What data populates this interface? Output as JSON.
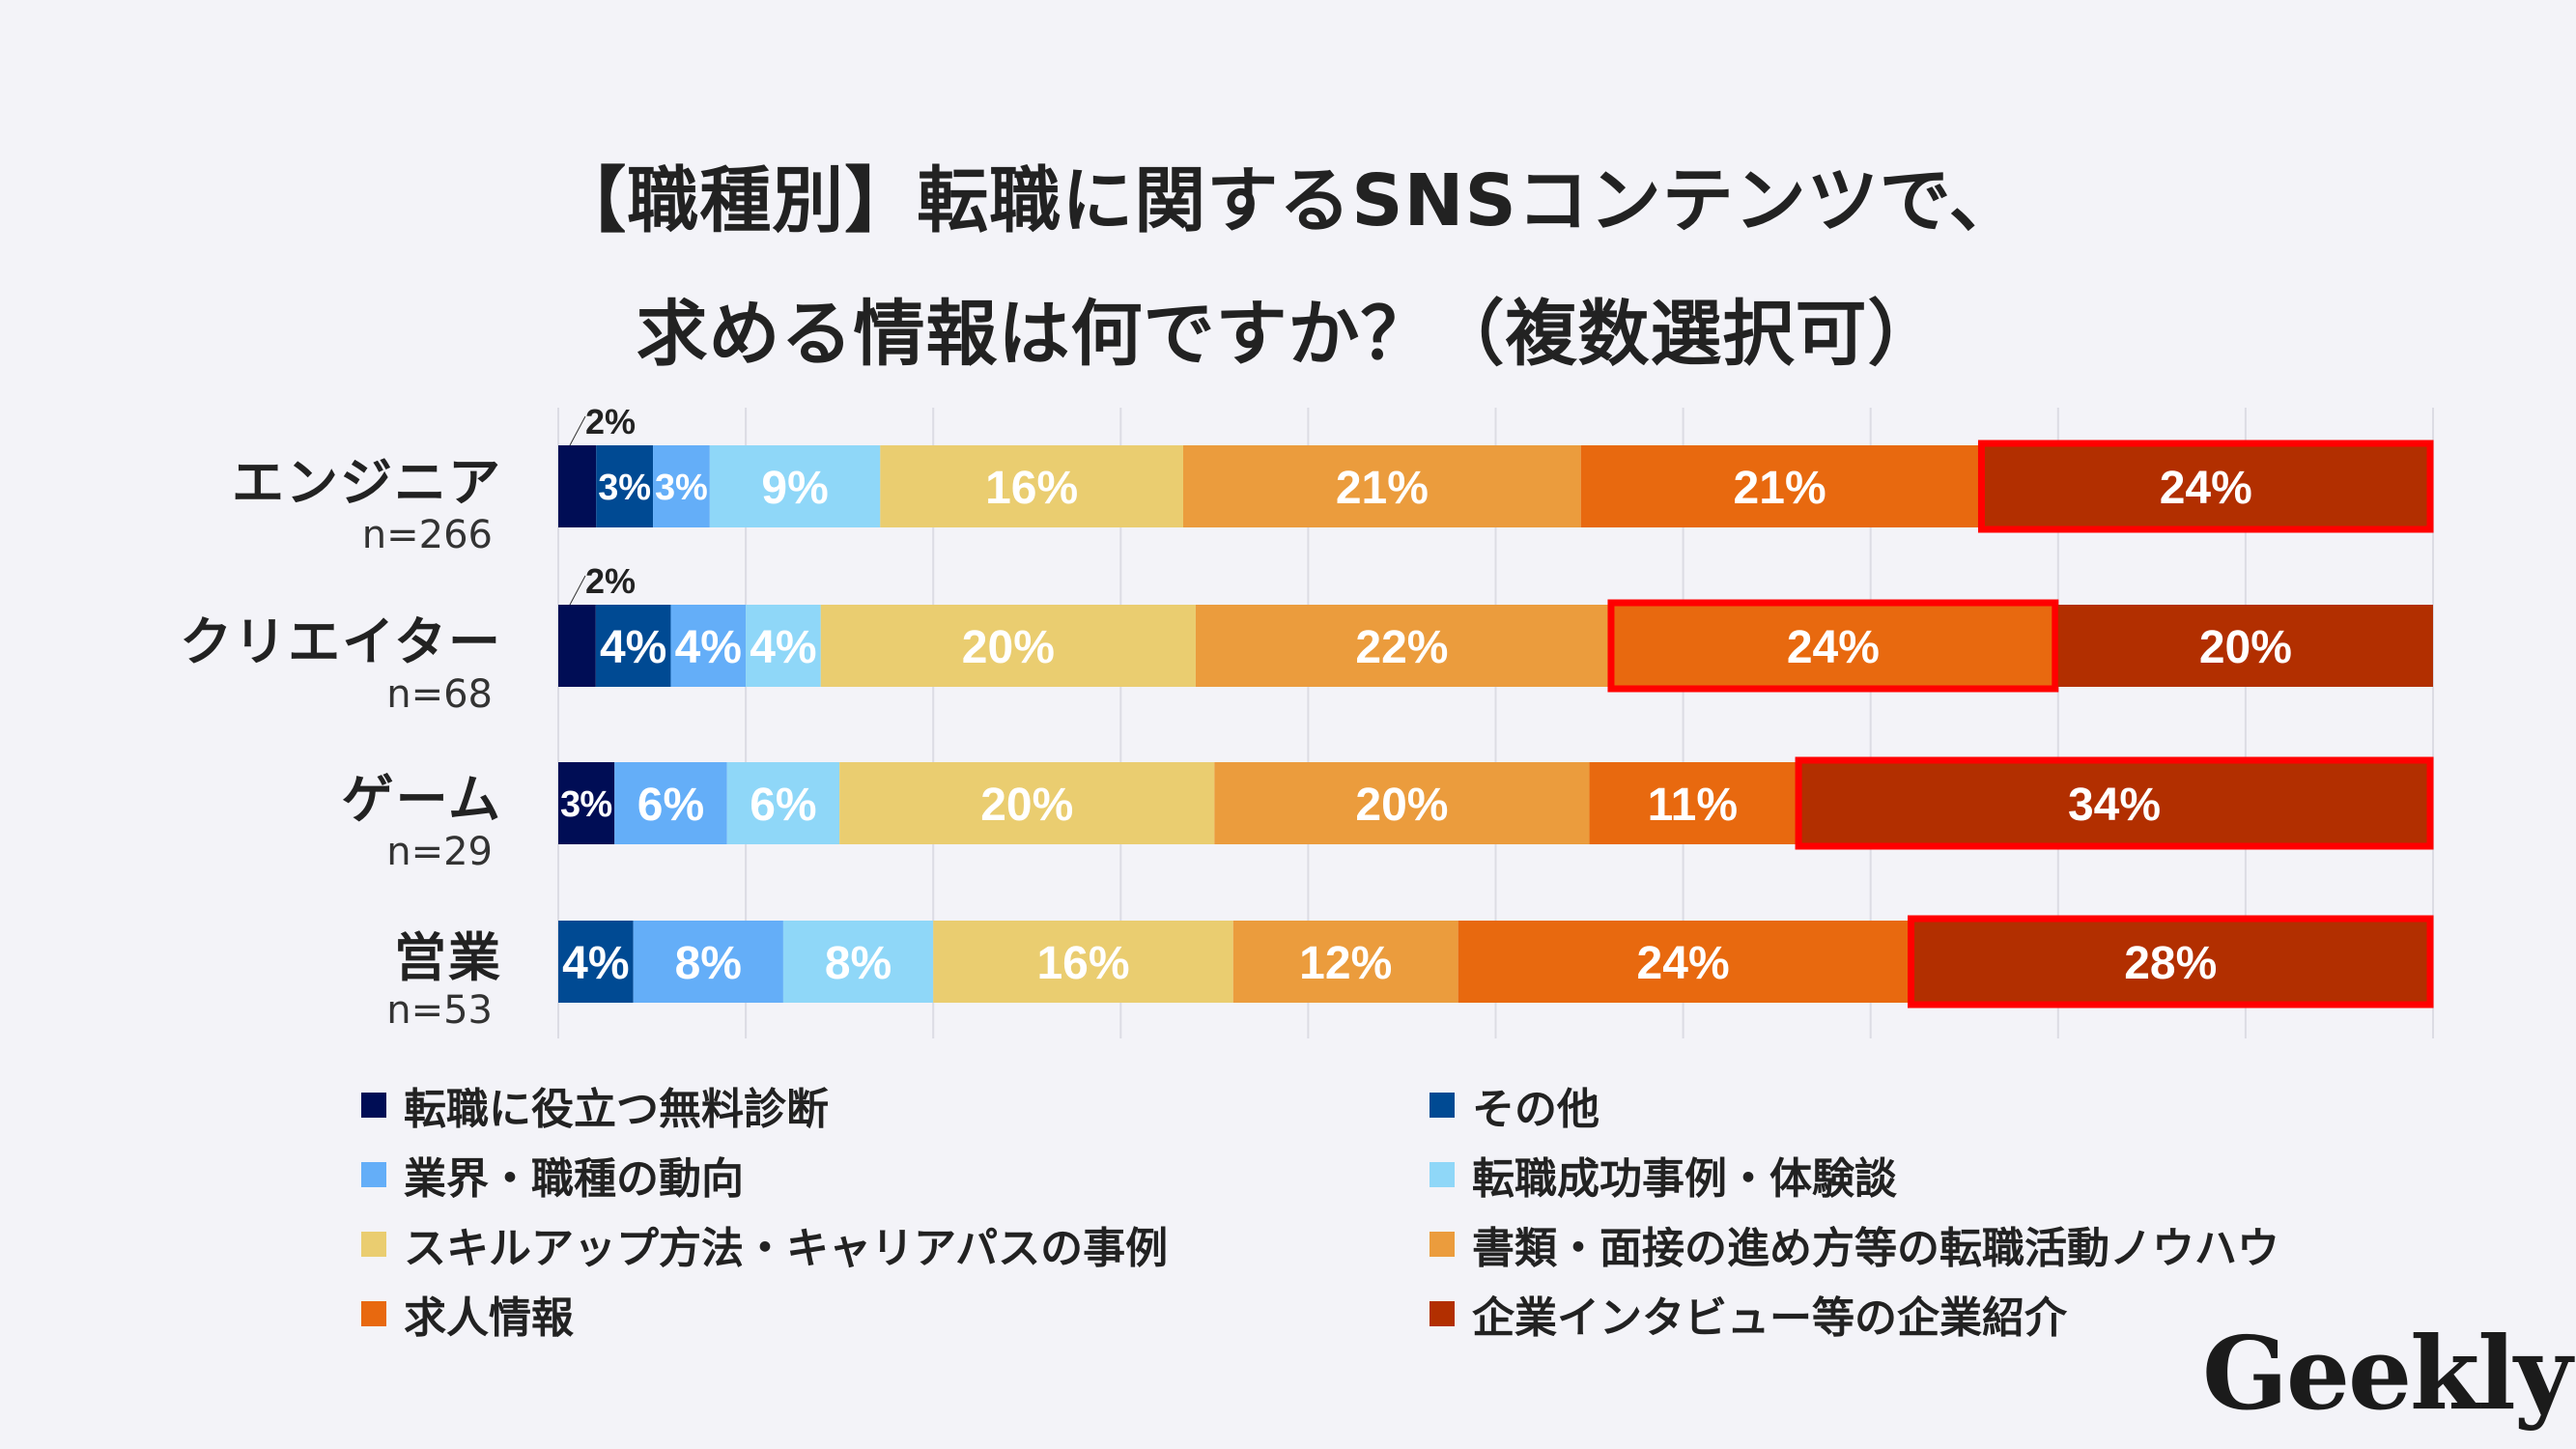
{
  "title_lines": [
    "【職種別】転職に関するSNSコンテンツで、",
    "求める情報は何ですか？（複数選択可）"
  ],
  "logo_text": "Geekly",
  "chart_data": {
    "type": "bar",
    "orientation": "horizontal",
    "stacked": true,
    "percent_stacked": true,
    "grid": true,
    "legend_position": "bottom",
    "categories": [
      {
        "label": "エンジニア",
        "n": "n=266"
      },
      {
        "label": "クリエイター",
        "n": "n=68"
      },
      {
        "label": "ゲーム",
        "n": "n=29"
      },
      {
        "label": "営業",
        "n": "n=53"
      }
    ],
    "series": [
      {
        "name": "転職に役立つ無料診断",
        "color": "#000d55",
        "values": [
          2,
          2,
          3,
          0
        ]
      },
      {
        "name": "その他",
        "color": "#004a93",
        "values": [
          3,
          4,
          0,
          4
        ]
      },
      {
        "name": "業界・職種の動向",
        "color": "#64aef8",
        "values": [
          3,
          4,
          6,
          8
        ]
      },
      {
        "name": "転職成功事例・体験談",
        "color": "#8fd7f8",
        "values": [
          9,
          4,
          6,
          8
        ]
      },
      {
        "name": "スキルアップ方法・キャリアパスの事例",
        "color": "#eacd70",
        "values": [
          16,
          20,
          20,
          16
        ]
      },
      {
        "name": "書類・面接の進め方等の転職活動ノウハウ",
        "color": "#eb9c3d",
        "values": [
          21,
          22,
          20,
          12
        ]
      },
      {
        "name": "求人情報",
        "color": "#e8690f",
        "values": [
          21,
          24,
          11,
          24
        ]
      },
      {
        "name": "企業インタビュー等の企業紹介",
        "color": "#b22f00",
        "values": [
          24,
          20,
          34,
          28
        ]
      }
    ],
    "highlighted_max": [
      {
        "category": "エンジニア",
        "series": "企業インタビュー等の企業紹介"
      },
      {
        "category": "クリエイター",
        "series": "求人情報"
      },
      {
        "category": "ゲーム",
        "series": "企業インタビュー等の企業紹介"
      },
      {
        "category": "営業",
        "series": "企業インタビュー等の企業紹介"
      }
    ],
    "highlight_color": "#ff0000",
    "value_suffix": "%"
  }
}
